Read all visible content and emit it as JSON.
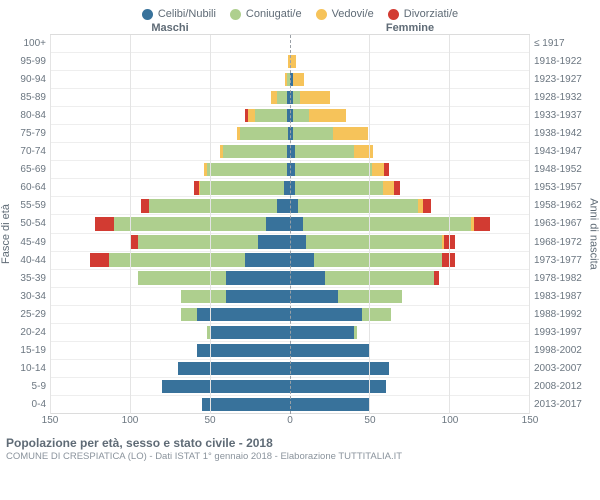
{
  "legend": [
    {
      "label": "Celibi/Nubili",
      "color": "#38729b"
    },
    {
      "label": "Coniugati/e",
      "color": "#aecf8e"
    },
    {
      "label": "Vedovi/e",
      "color": "#f6c35a"
    },
    {
      "label": "Divorziati/e",
      "color": "#d23b32"
    }
  ],
  "headers": {
    "male": "Maschi",
    "female": "Femmine"
  },
  "axis_titles": {
    "left": "Fasce di età",
    "right": "Anni di nascita"
  },
  "x_axis": {
    "max": 150,
    "ticks": [
      0,
      50,
      100,
      150
    ]
  },
  "footer": {
    "title": "Popolazione per età, sesso e stato civile - 2018",
    "subtitle": "COMUNE DI CRESPIATICA (LO) - Dati ISTAT 1° gennaio 2018 - Elaborazione TUTTITALIA.IT"
  },
  "colors": {
    "single": "#38729b",
    "married": "#aecf8e",
    "widowed": "#f6c35a",
    "divorced": "#d23b32",
    "grid": "#e4e4e4",
    "text": "#6b7680",
    "center_line": "#9aa0a6",
    "bg": "#ffffff"
  },
  "rows": [
    {
      "age": "100+",
      "birth": "≤ 1917",
      "m": {
        "s": 0,
        "m": 0,
        "w": 0,
        "d": 0
      },
      "f": {
        "s": 0,
        "m": 0,
        "w": 0,
        "d": 0
      }
    },
    {
      "age": "95-99",
      "birth": "1918-1922",
      "m": {
        "s": 0,
        "m": 0,
        "w": 1,
        "d": 0
      },
      "f": {
        "s": 0,
        "m": 0,
        "w": 4,
        "d": 0
      }
    },
    {
      "age": "90-94",
      "birth": "1923-1927",
      "m": {
        "s": 0,
        "m": 2,
        "w": 1,
        "d": 0
      },
      "f": {
        "s": 2,
        "m": 0,
        "w": 7,
        "d": 0
      }
    },
    {
      "age": "85-89",
      "birth": "1928-1932",
      "m": {
        "s": 2,
        "m": 6,
        "w": 4,
        "d": 0
      },
      "f": {
        "s": 2,
        "m": 4,
        "w": 19,
        "d": 0
      }
    },
    {
      "age": "80-84",
      "birth": "1933-1937",
      "m": {
        "s": 2,
        "m": 20,
        "w": 4,
        "d": 2
      },
      "f": {
        "s": 2,
        "m": 10,
        "w": 23,
        "d": 0
      }
    },
    {
      "age": "75-79",
      "birth": "1938-1942",
      "m": {
        "s": 1,
        "m": 30,
        "w": 2,
        "d": 0
      },
      "f": {
        "s": 2,
        "m": 25,
        "w": 22,
        "d": 0
      }
    },
    {
      "age": "70-74",
      "birth": "1943-1947",
      "m": {
        "s": 2,
        "m": 40,
        "w": 2,
        "d": 0
      },
      "f": {
        "s": 3,
        "m": 37,
        "w": 12,
        "d": 0
      }
    },
    {
      "age": "65-69",
      "birth": "1948-1952",
      "m": {
        "s": 2,
        "m": 50,
        "w": 2,
        "d": 0
      },
      "f": {
        "s": 3,
        "m": 48,
        "w": 8,
        "d": 3
      }
    },
    {
      "age": "60-64",
      "birth": "1953-1957",
      "m": {
        "s": 4,
        "m": 52,
        "w": 1,
        "d": 3
      },
      "f": {
        "s": 3,
        "m": 55,
        "w": 7,
        "d": 4
      }
    },
    {
      "age": "55-59",
      "birth": "1958-1962",
      "m": {
        "s": 8,
        "m": 80,
        "w": 0,
        "d": 5
      },
      "f": {
        "s": 5,
        "m": 75,
        "w": 3,
        "d": 5
      }
    },
    {
      "age": "50-54",
      "birth": "1963-1967",
      "m": {
        "s": 15,
        "m": 95,
        "w": 0,
        "d": 12
      },
      "f": {
        "s": 8,
        "m": 105,
        "w": 2,
        "d": 10
      }
    },
    {
      "age": "45-49",
      "birth": "1968-1972",
      "m": {
        "s": 20,
        "m": 75,
        "w": 0,
        "d": 5
      },
      "f": {
        "s": 10,
        "m": 85,
        "w": 1,
        "d": 7
      }
    },
    {
      "age": "40-44",
      "birth": "1973-1977",
      "m": {
        "s": 28,
        "m": 85,
        "w": 0,
        "d": 12
      },
      "f": {
        "s": 15,
        "m": 80,
        "w": 0,
        "d": 8
      }
    },
    {
      "age": "35-39",
      "birth": "1978-1982",
      "m": {
        "s": 40,
        "m": 55,
        "w": 0,
        "d": 0
      },
      "f": {
        "s": 22,
        "m": 68,
        "w": 0,
        "d": 3
      }
    },
    {
      "age": "30-34",
      "birth": "1983-1987",
      "m": {
        "s": 40,
        "m": 28,
        "w": 0,
        "d": 0
      },
      "f": {
        "s": 30,
        "m": 40,
        "w": 0,
        "d": 0
      }
    },
    {
      "age": "25-29",
      "birth": "1988-1992",
      "m": {
        "s": 58,
        "m": 10,
        "w": 0,
        "d": 0
      },
      "f": {
        "s": 45,
        "m": 18,
        "w": 0,
        "d": 0
      }
    },
    {
      "age": "20-24",
      "birth": "1993-1997",
      "m": {
        "s": 50,
        "m": 2,
        "w": 0,
        "d": 0
      },
      "f": {
        "s": 40,
        "m": 2,
        "w": 0,
        "d": 0
      }
    },
    {
      "age": "15-19",
      "birth": "1998-2002",
      "m": {
        "s": 58,
        "m": 0,
        "w": 0,
        "d": 0
      },
      "f": {
        "s": 50,
        "m": 0,
        "w": 0,
        "d": 0
      }
    },
    {
      "age": "10-14",
      "birth": "2003-2007",
      "m": {
        "s": 70,
        "m": 0,
        "w": 0,
        "d": 0
      },
      "f": {
        "s": 62,
        "m": 0,
        "w": 0,
        "d": 0
      }
    },
    {
      "age": "5-9",
      "birth": "2008-2012",
      "m": {
        "s": 80,
        "m": 0,
        "w": 0,
        "d": 0
      },
      "f": {
        "s": 60,
        "m": 0,
        "w": 0,
        "d": 0
      }
    },
    {
      "age": "0-4",
      "birth": "2013-2017",
      "m": {
        "s": 55,
        "m": 0,
        "w": 0,
        "d": 0
      },
      "f": {
        "s": 50,
        "m": 0,
        "w": 0,
        "d": 0
      }
    }
  ]
}
